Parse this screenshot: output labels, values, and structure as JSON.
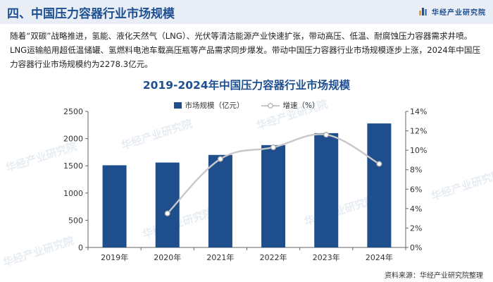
{
  "header": {
    "section_title": "四、中国压力容器行业市场规模",
    "brand": "华经产业研究院"
  },
  "intro_text": "随着“双碳”战略推进，氢能、液化天然气（LNG）、光伏等清洁能源产业快速扩张，带动高压、低温、耐腐蚀压力容器需求井喷。LNG运输船用超低温储罐、氢燃料电池车载高压瓶等产品需求同步爆发。带动中国压力容器行业市场规模逐步上涨，2024年中国压力容器行业市场规模约为2278.3亿元。",
  "watermark": "华经产业研究院",
  "source": "资料来源：华经产业研究院整理",
  "colors": {
    "accent": "#1e4f91",
    "bar": "#1f4e8c",
    "line": "#c8c8c8",
    "marker_stroke": "#aaaaaa",
    "header_bg": "#e9edf5"
  },
  "chart_data": {
    "type": "bar",
    "title": "2019-2024年中国压力容器行业市场规模",
    "categories": [
      "2019年",
      "2020年",
      "2021年",
      "2022年",
      "2023年",
      "2024年"
    ],
    "series": [
      {
        "name": "市场规模（亿元）",
        "type": "bar",
        "axis": "left",
        "values": [
          1510,
          1560,
          1700,
          1880,
          2100,
          2278.3
        ]
      },
      {
        "name": "增速（%）",
        "type": "line",
        "axis": "right",
        "values": [
          null,
          3.5,
          9.1,
          10.3,
          11.6,
          8.6
        ]
      }
    ],
    "ylim_left": [
      0,
      2500
    ],
    "yticks_left": [
      "0",
      "500",
      "1000",
      "1500",
      "2000",
      "2500"
    ],
    "ylim_right": [
      0,
      14
    ],
    "yticks_right": [
      "0%",
      "2%",
      "4%",
      "6%",
      "8%",
      "10%",
      "12%",
      "14%"
    ],
    "grid": false,
    "legend_position": "top-center"
  }
}
